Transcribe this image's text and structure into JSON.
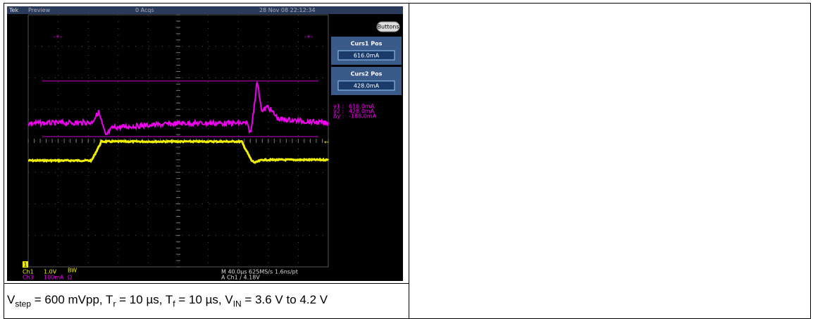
{
  "scope": {
    "header": {
      "brand": "Tek",
      "mode": "Preview",
      "acqs": "0 Acqs",
      "timestamp": "28 Nov 08 22:12:34"
    },
    "buttons": "Buttons",
    "cursor1": {
      "label": "Curs1 Pos",
      "value": "616.0mA"
    },
    "cursor2": {
      "label": "Curs2 Pos",
      "value": "428.0mA"
    },
    "readouts": [
      {
        "name": "y1 :",
        "value": "616.0mA"
      },
      {
        "name": "y2 :",
        "value": "428.0mA"
      },
      {
        "name": "Δy :",
        "value": "-188.0mA"
      }
    ],
    "ch1_marker": "1",
    "ch1": {
      "name": "Ch1",
      "scale": "1.0V",
      "bw": "BW"
    },
    "ch3": {
      "name": "Ch3",
      "scale": "100mA",
      "term": "Ω"
    },
    "timebase": "M 40.0µs 625MS/s",
    "resolution": "1.6ns/pt",
    "trigger": "A  Ch1  ∕  4.18V"
  },
  "caption": [
    "V",
    "step",
    " = 600 mVpp, T",
    "r",
    " = 10 µs, T",
    "f",
    " = 10 µs, V",
    "IN",
    " = 3.6 V to 4.2 V"
  ]
}
